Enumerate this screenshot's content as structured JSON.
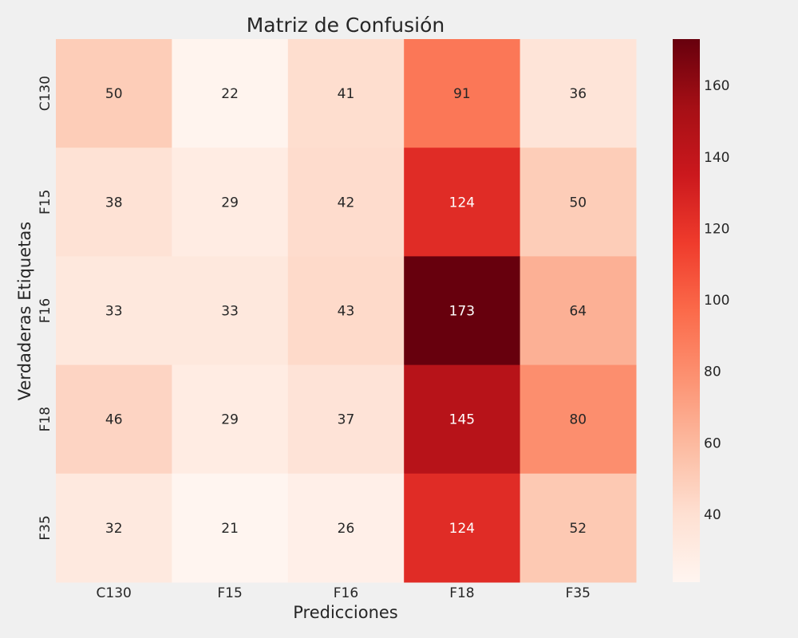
{
  "chart_data": {
    "type": "heatmap",
    "title": "Matriz de Confusión",
    "xlabel": "Predicciones",
    "ylabel": "Verdaderas Etiquetas",
    "x_categories": [
      "C130",
      "F15",
      "F16",
      "F18",
      "F35"
    ],
    "y_categories": [
      "C130",
      "F15",
      "F16",
      "F18",
      "F35"
    ],
    "values": [
      [
        50,
        22,
        41,
        91,
        36
      ],
      [
        38,
        29,
        42,
        124,
        50
      ],
      [
        33,
        33,
        43,
        173,
        64
      ],
      [
        46,
        29,
        37,
        145,
        80
      ],
      [
        32,
        21,
        26,
        124,
        52
      ]
    ],
    "colormap": "Reds",
    "colorbar": {
      "range": [
        21,
        173
      ],
      "ticks": [
        40,
        60,
        80,
        100,
        120,
        140,
        160
      ]
    },
    "grid": false
  },
  "colors": {
    "background": "#f0f0f0",
    "text_dark": "#262626",
    "text_light": "#ffffff"
  }
}
